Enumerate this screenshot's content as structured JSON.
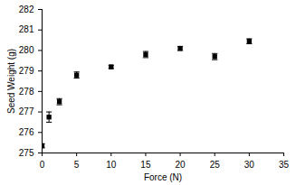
{
  "chart_data": {
    "type": "scatter",
    "x_label": "Force (N)",
    "y_label": "Seed Weight (g)",
    "x": [
      0,
      1,
      2.5,
      5,
      10,
      15,
      20,
      25,
      30
    ],
    "values": [
      275.35,
      276.75,
      277.5,
      278.8,
      279.2,
      279.8,
      280.1,
      279.7,
      280.45
    ],
    "errors": [
      0.1,
      0.25,
      0.15,
      0.15,
      0.08,
      0.15,
      0.1,
      0.15,
      0.12
    ],
    "color": "#000000",
    "marker": "square",
    "xlim": [
      0,
      35
    ],
    "xticks": [
      0,
      5,
      10,
      15,
      20,
      25,
      30,
      35
    ],
    "ylim": [
      275,
      282
    ],
    "yticks": [
      275,
      276,
      277,
      278,
      279,
      280,
      281,
      282
    ],
    "grid": false
  }
}
